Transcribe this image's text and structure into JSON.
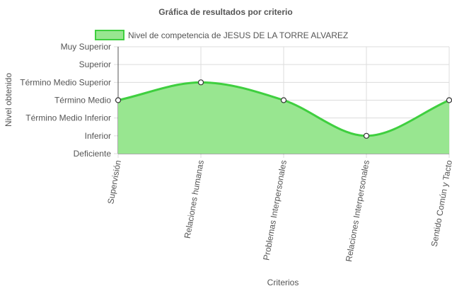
{
  "chart_data": {
    "type": "area",
    "title": "Gráfica de resultados por criterio",
    "xlabel": "Criterios",
    "ylabel": "Nivel obtenido",
    "categories": [
      "Supervisión",
      "Relaciones humanas",
      "Problemas Interpersonales",
      "Relaciones Interpersonales",
      "Sentido Común y Tacto"
    ],
    "y_levels": [
      "Deficiente",
      "Inferior",
      "Término Medio Inferior",
      "Término Medio",
      "Término Medio Superior",
      "Superior",
      "Muy Superior"
    ],
    "series": [
      {
        "name": "Nivel de competencia de JESUS DE LA TORRE ALVAREZ",
        "values": [
          3,
          4,
          3,
          1,
          3
        ]
      }
    ],
    "ylim": [
      0,
      6
    ],
    "grid": true,
    "legend_position": "top",
    "colors": {
      "fill": "#98e690",
      "line": "#3fcf3f",
      "point_fill": "#ffffff",
      "point_stroke": "#333333",
      "grid": "#dcdcdc",
      "axis": "#555555"
    }
  }
}
